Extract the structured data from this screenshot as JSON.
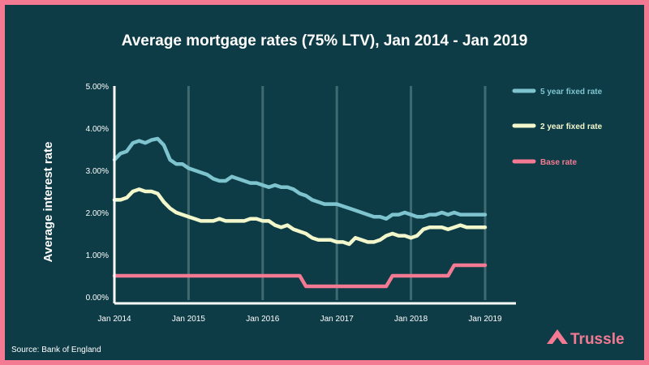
{
  "chart_data": {
    "type": "line",
    "title": "Average mortgage rates (75% LTV), Jan 2014 - Jan 2019",
    "xlabel": "",
    "ylabel": "Average interest rate",
    "ylim": [
      0,
      5
    ],
    "yticks": [
      "0.00%",
      "1.00%",
      "2.00%",
      "3.00%",
      "4.00%",
      "5.00%"
    ],
    "xticks": [
      "Jan 2014",
      "Jan 2015",
      "Jan 2016",
      "Jan 2017",
      "Jan 2018",
      "Jan 2019"
    ],
    "x_start": "Jan 2014",
    "x_step": "month",
    "series": [
      {
        "name": "5 year fixed rate",
        "color": "#7ec4cf",
        "values": [
          3.25,
          3.4,
          3.45,
          3.65,
          3.7,
          3.65,
          3.72,
          3.75,
          3.6,
          3.25,
          3.15,
          3.15,
          3.05,
          3.0,
          2.95,
          2.9,
          2.8,
          2.75,
          2.75,
          2.85,
          2.8,
          2.75,
          2.7,
          2.7,
          2.65,
          2.6,
          2.65,
          2.6,
          2.6,
          2.55,
          2.45,
          2.4,
          2.3,
          2.25,
          2.2,
          2.2,
          2.2,
          2.15,
          2.1,
          2.05,
          2.0,
          1.95,
          1.9,
          1.9,
          1.85,
          1.95,
          1.95,
          2.0,
          1.95,
          1.9,
          1.9,
          1.95,
          1.95,
          2.0,
          1.95,
          2.0,
          1.95,
          1.95,
          1.95,
          1.95,
          1.95
        ]
      },
      {
        "name": "2 year fixed rate",
        "color": "#f3f8cc",
        "values": [
          2.3,
          2.3,
          2.35,
          2.5,
          2.55,
          2.5,
          2.5,
          2.45,
          2.25,
          2.1,
          2.0,
          1.95,
          1.9,
          1.85,
          1.8,
          1.8,
          1.8,
          1.85,
          1.8,
          1.8,
          1.8,
          1.8,
          1.85,
          1.85,
          1.8,
          1.8,
          1.7,
          1.65,
          1.7,
          1.6,
          1.55,
          1.5,
          1.4,
          1.35,
          1.35,
          1.35,
          1.3,
          1.3,
          1.25,
          1.4,
          1.35,
          1.3,
          1.3,
          1.35,
          1.45,
          1.5,
          1.45,
          1.45,
          1.4,
          1.45,
          1.6,
          1.65,
          1.65,
          1.65,
          1.6,
          1.65,
          1.7,
          1.65,
          1.65,
          1.65,
          1.65
        ]
      },
      {
        "name": "Base rate",
        "color": "#f47a93",
        "values": [
          0.5,
          0.5,
          0.5,
          0.5,
          0.5,
          0.5,
          0.5,
          0.5,
          0.5,
          0.5,
          0.5,
          0.5,
          0.5,
          0.5,
          0.5,
          0.5,
          0.5,
          0.5,
          0.5,
          0.5,
          0.5,
          0.5,
          0.5,
          0.5,
          0.5,
          0.5,
          0.5,
          0.5,
          0.5,
          0.5,
          0.5,
          0.25,
          0.25,
          0.25,
          0.25,
          0.25,
          0.25,
          0.25,
          0.25,
          0.25,
          0.25,
          0.25,
          0.25,
          0.25,
          0.25,
          0.5,
          0.5,
          0.5,
          0.5,
          0.5,
          0.5,
          0.5,
          0.5,
          0.5,
          0.5,
          0.75,
          0.75,
          0.75,
          0.75,
          0.75,
          0.75
        ]
      }
    ],
    "legend_position": "right",
    "grid": "vertical"
  },
  "source": "Source: Bank of England",
  "brand": "Trussle",
  "colors": {
    "background": "#0e3c46",
    "border": "#f47a93",
    "grid": "#3f6a71",
    "axis": "#ffffff"
  }
}
